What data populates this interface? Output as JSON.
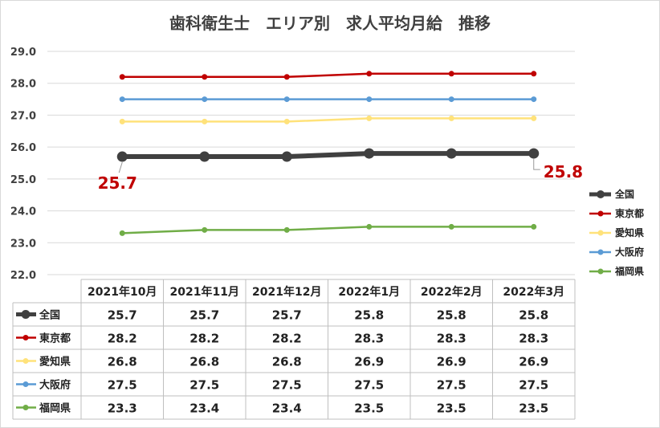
{
  "chart_data": {
    "type": "line",
    "title": "歯科衛生士　エリア別　求人平均月給　推移",
    "categories": [
      "2021年10月",
      "2021年11月",
      "2021年12月",
      "2022年1月",
      "2022年2月",
      "2022年3月"
    ],
    "ylim": [
      22.0,
      29.0
    ],
    "yticks": [
      "29.0",
      "28.0",
      "27.0",
      "26.0",
      "25.0",
      "24.0",
      "23.0",
      "22.0"
    ],
    "grid": true,
    "legend_position": "right",
    "series": [
      {
        "name": "全国",
        "values": [
          25.7,
          25.7,
          25.7,
          25.8,
          25.8,
          25.8
        ],
        "color": "#404040",
        "display": [
          "25.7",
          "25.7",
          "25.7",
          "25.8",
          "25.8",
          "25.8"
        ]
      },
      {
        "name": "東京都",
        "values": [
          28.2,
          28.2,
          28.2,
          28.3,
          28.3,
          28.3
        ],
        "color": "#c00000",
        "display": [
          "28.2",
          "28.2",
          "28.2",
          "28.3",
          "28.3",
          "28.3"
        ]
      },
      {
        "name": "愛知県",
        "values": [
          26.8,
          26.8,
          26.8,
          26.9,
          26.9,
          26.9
        ],
        "color": "#ffe27a",
        "display": [
          "26.8",
          "26.8",
          "26.8",
          "26.9",
          "26.9",
          "26.9"
        ]
      },
      {
        "name": "大阪府",
        "values": [
          27.5,
          27.5,
          27.5,
          27.5,
          27.5,
          27.5
        ],
        "color": "#5b9bd5",
        "display": [
          "27.5",
          "27.5",
          "27.5",
          "27.5",
          "27.5",
          "27.5"
        ]
      },
      {
        "name": "福岡県",
        "values": [
          23.3,
          23.4,
          23.4,
          23.5,
          23.5,
          23.5
        ],
        "color": "#70ad47",
        "display": [
          "23.3",
          "23.4",
          "23.4",
          "23.5",
          "23.5",
          "23.5"
        ]
      }
    ],
    "annotations": [
      {
        "series": "全国",
        "index": 0,
        "text": "25.7"
      },
      {
        "series": "全国",
        "index": 5,
        "text": "25.8"
      }
    ]
  }
}
